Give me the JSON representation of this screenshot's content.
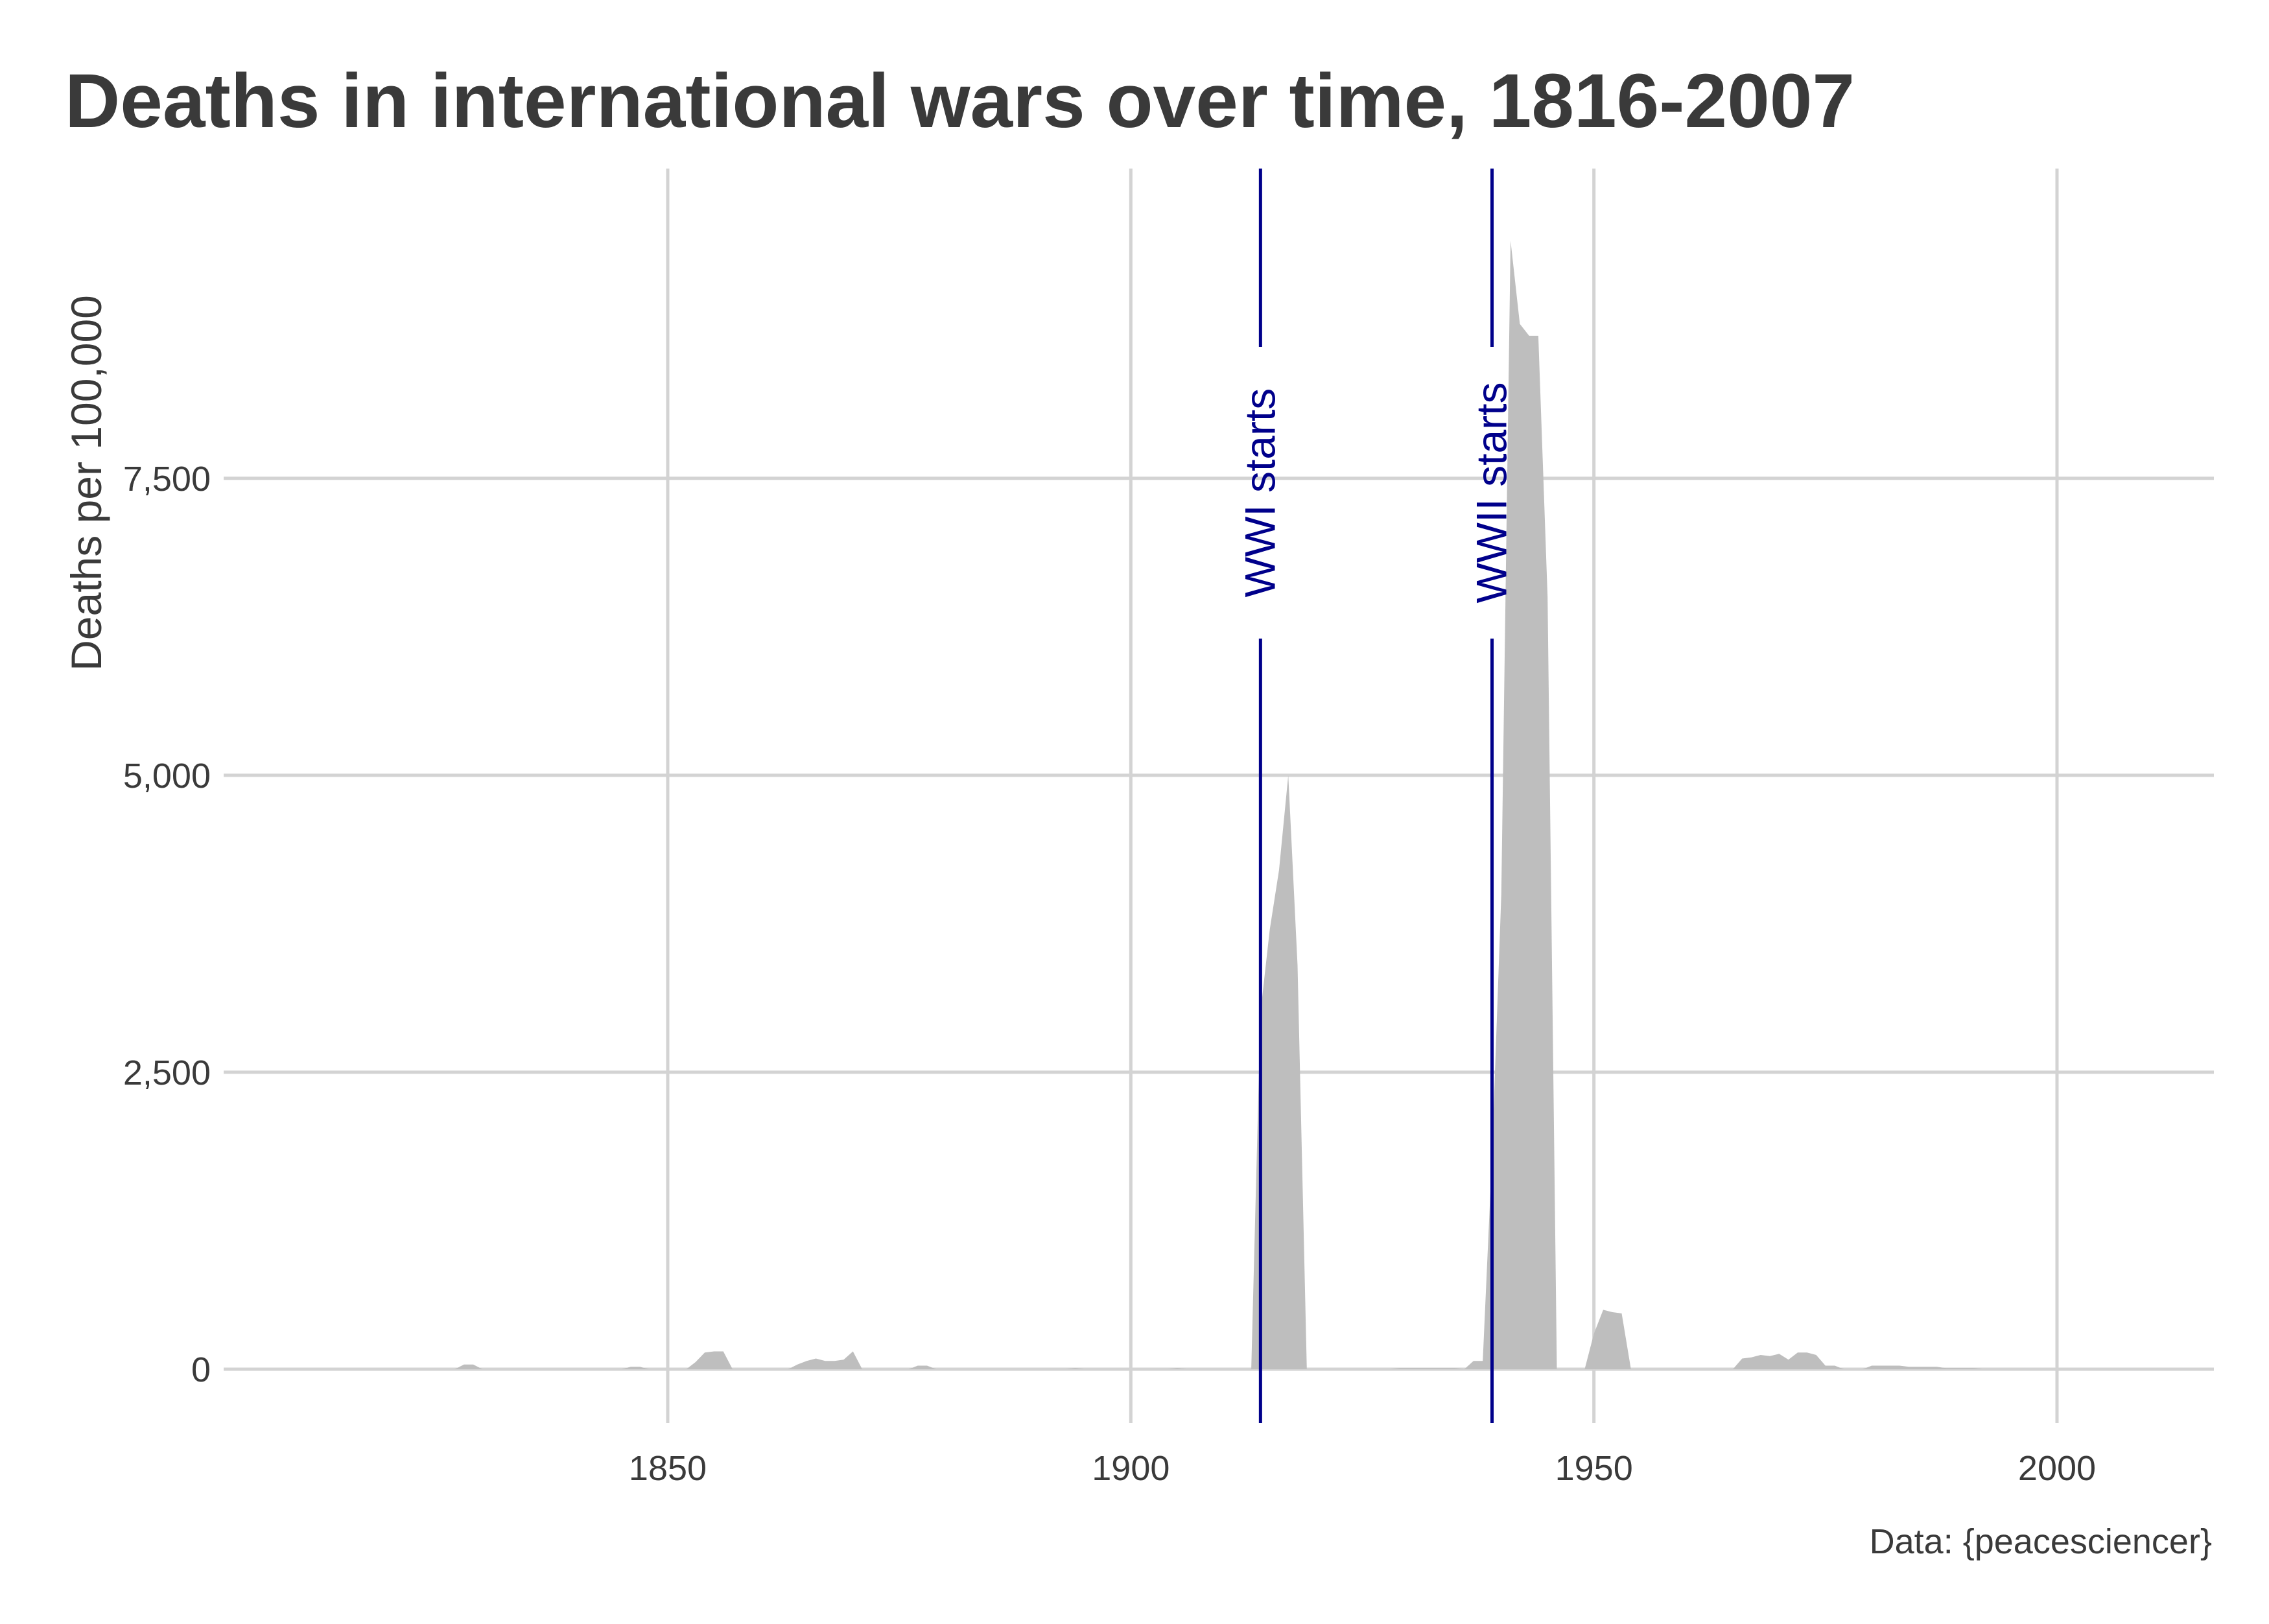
{
  "chart_data": {
    "type": "area",
    "title": "Deaths in international wars over time, 1816-2007",
    "ylabel": "Deaths per 100,000",
    "caption": "Data: {peacesciencer}",
    "xlim": [
      1816,
      2007
    ],
    "ylim": [
      0,
      9600
    ],
    "x_ticks": [
      1850,
      1900,
      1950,
      2000
    ],
    "x_tick_labels": [
      "1850",
      "1900",
      "1950",
      "2000"
    ],
    "y_ticks": [
      0,
      2500,
      5000,
      7500
    ],
    "y_tick_labels": [
      "0",
      "2,500",
      "5,000",
      "7,500"
    ],
    "grid": true,
    "colors": {
      "area": "#bebebe",
      "grid": "#d3d3d3",
      "annotation": "#00008b",
      "text": "#3a3a3a"
    },
    "annotations": [
      {
        "x": 1914,
        "label": "WWI starts"
      },
      {
        "x": 1939,
        "label": "WWII starts"
      }
    ],
    "series": [
      {
        "x": [
          1816,
          1827,
          1828,
          1829,
          1830,
          1831,
          1845,
          1846,
          1847,
          1848,
          1852,
          1853,
          1854,
          1855,
          1856,
          1857,
          1858,
          1862,
          1863,
          1864,
          1865,
          1866,
          1867,
          1868,
          1869,
          1870,
          1871,
          1872,
          1876,
          1877,
          1878,
          1879,
          1880,
          1893,
          1894,
          1895,
          1904,
          1905,
          1906,
          1912,
          1913,
          1914,
          1915,
          1916,
          1917,
          1918,
          1919,
          1920,
          1928,
          1929,
          1930,
          1931,
          1932,
          1933,
          1934,
          1935,
          1936,
          1937,
          1938,
          1939,
          1940,
          1941,
          1942,
          1943,
          1944,
          1945,
          1946,
          1947,
          1948,
          1949,
          1950,
          1951,
          1952,
          1953,
          1954,
          1955,
          1963,
          1964,
          1965,
          1966,
          1967,
          1968,
          1969,
          1970,
          1971,
          1972,
          1973,
          1974,
          1975,
          1976,
          1977,
          1978,
          1979,
          1980,
          1981,
          1982,
          1983,
          1984,
          1985,
          1986,
          1987,
          1988,
          1989,
          1990,
          1991,
          1992,
          2007
        ],
        "values": [
          0,
          0,
          40,
          40,
          0,
          0,
          0,
          20,
          20,
          0,
          0,
          60,
          140,
          150,
          150,
          0,
          0,
          0,
          0,
          40,
          70,
          90,
          70,
          70,
          80,
          150,
          0,
          0,
          0,
          30,
          30,
          0,
          0,
          0,
          10,
          0,
          0,
          10,
          0,
          0,
          0,
          3000,
          3700,
          4200,
          5000,
          3400,
          0,
          0,
          0,
          10,
          10,
          10,
          10,
          10,
          10,
          10,
          0,
          70,
          70,
          1800,
          4000,
          9500,
          8800,
          8700,
          8700,
          6500,
          0,
          0,
          0,
          0,
          300,
          500,
          480,
          470,
          0,
          0,
          0,
          0,
          0,
          90,
          100,
          120,
          110,
          130,
          80,
          140,
          140,
          120,
          30,
          30,
          0,
          0,
          0,
          30,
          30,
          30,
          30,
          20,
          20,
          20,
          20,
          10,
          10,
          10,
          10,
          0,
          0
        ]
      }
    ]
  }
}
